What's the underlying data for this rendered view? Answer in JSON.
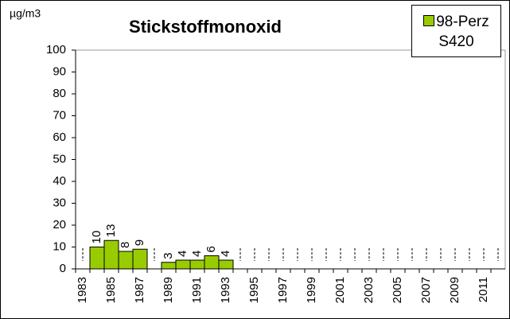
{
  "chart_data": {
    "type": "bar",
    "title": "Stickstoffmonoxid",
    "y_label": "µg/m3",
    "categories": [
      "1983",
      null,
      "1985",
      null,
      "1987",
      null,
      "1989",
      null,
      "1991",
      null,
      "1993",
      null,
      "1995",
      null,
      "1997",
      null,
      "1999",
      null,
      "2001",
      null,
      "2003",
      null,
      "2005",
      null,
      "2007",
      null,
      "2009",
      null,
      "2011",
      null
    ],
    "series": [
      {
        "name": "98-Perz S420",
        "color": "#99cc00",
        "values": [
          null,
          10,
          13,
          8,
          9,
          null,
          3,
          4,
          4,
          6,
          4,
          null,
          null,
          null,
          null,
          null,
          null,
          null,
          null,
          null,
          null,
          null,
          null,
          null,
          null,
          null,
          null,
          null,
          null,
          null
        ]
      }
    ],
    "ylim": [
      0,
      100
    ],
    "yticks": [
      0,
      10,
      20,
      30,
      40,
      50,
      60,
      70,
      80,
      90,
      100
    ],
    "grid": false,
    "legend": "top-right"
  }
}
